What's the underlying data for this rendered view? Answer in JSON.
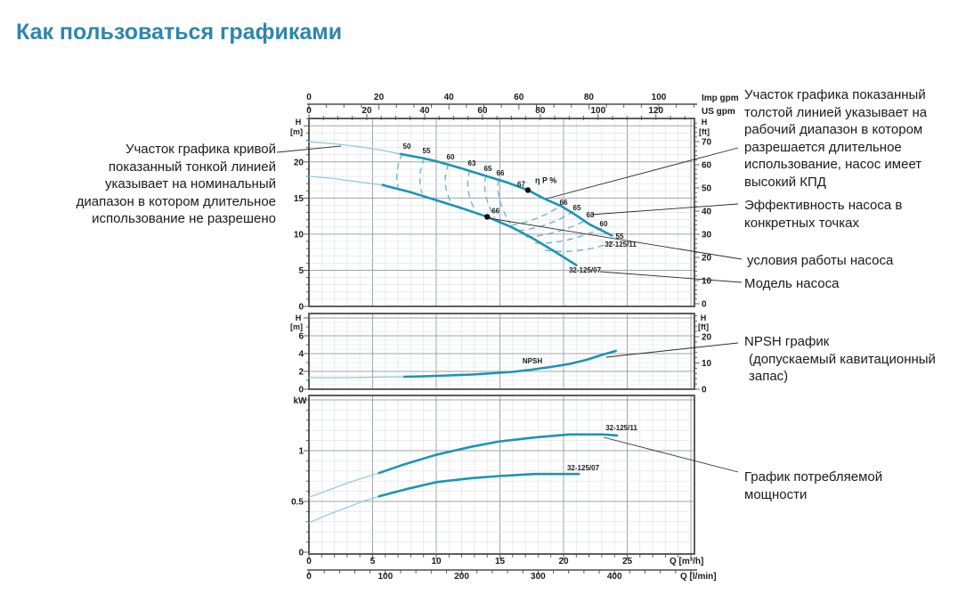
{
  "page": {
    "title": "Как пользоваться графиками"
  },
  "annotations": {
    "left_nominal": "Участок графика кривой показанный тонкой линией указывает на номинальный диапазон в котором длительное использование не разрешено",
    "right_working": "Участок графика показанный толстой линией указывает на рабочий диапазон в котором разрешается длительное использование, насос имеет высокий КПД",
    "efficiency_points": "Эффективность насоса в конкретных точках",
    "operating_point": "условия работы насоса",
    "pump_model": "Модель насоса",
    "npsh_line1": "NPSH график",
    "npsh_line2": "(допускаемый кавитационный запас)",
    "power": "График потребляемой мощности"
  },
  "colors": {
    "accent_title": "#2e86ad",
    "curve_thick": "#1b95b5",
    "curve_thin": "#8fc8dc",
    "curve_dashed": "#66b2cc",
    "callout": "#2b2b2b",
    "grid_minor": "#dcdfe1",
    "grid_major": "#9fa4a8",
    "border": "#4d4d4d",
    "text": "#1a1a1a"
  },
  "chart_data": [
    {
      "type": "line",
      "name": "head-flow-chart",
      "x_top_axes": [
        {
          "unit": "Imp gpm",
          "ticks": [
            0,
            20,
            40,
            60,
            80,
            100
          ]
        },
        {
          "unit": "US gpm",
          "ticks": [
            0,
            20,
            40,
            60,
            80,
            100,
            120
          ]
        }
      ],
      "ylabel_left": [
        "H",
        "[m]"
      ],
      "yticks_left": [
        0,
        5,
        10,
        15,
        20
      ],
      "ylabel_right": [
        "H",
        "[ft]"
      ],
      "yticks_right": [
        0,
        10,
        20,
        30,
        40,
        50,
        60,
        70
      ],
      "xlim_m3h": [
        0,
        30.3
      ],
      "ylim_m": [
        0,
        26
      ],
      "series": [
        {
          "name": "32-125/11",
          "nominal_until_q": 7.2,
          "points": [
            [
              0,
              22.8
            ],
            [
              2,
              22.5
            ],
            [
              4,
              22.1
            ],
            [
              5.5,
              21.7
            ],
            [
              7.2,
              21.1
            ],
            [
              9,
              20.5
            ],
            [
              10,
              20.1
            ],
            [
              12,
              19.1
            ],
            [
              14,
              18.0
            ],
            [
              15.5,
              17.2
            ],
            [
              17.2,
              16.1
            ],
            [
              18.5,
              14.9
            ],
            [
              19.8,
              13.9
            ],
            [
              21,
              12.6
            ],
            [
              22,
              11.4
            ],
            [
              23,
              10.5
            ],
            [
              23.8,
              9.8
            ]
          ]
        },
        {
          "name": "32-125/07",
          "nominal_until_q": 5.8,
          "points": [
            [
              0,
              18.0
            ],
            [
              2,
              17.7
            ],
            [
              4,
              17.2
            ],
            [
              5.8,
              16.8
            ],
            [
              8,
              15.8
            ],
            [
              10,
              14.7
            ],
            [
              12,
              13.6
            ],
            [
              14,
              12.4
            ],
            [
              16,
              10.9
            ],
            [
              17.7,
              9.3
            ],
            [
              19.3,
              7.6
            ],
            [
              21,
              5.7
            ]
          ]
        }
      ],
      "efficiency_curve_labels": [
        50,
        55,
        60,
        63,
        65,
        66
      ],
      "efficiency_cascade_labels": [
        66,
        65,
        63,
        60,
        55
      ],
      "best_efficiency_point": {
        "label": "67",
        "eta_caption": "η P %",
        "q_m3h": 17.2,
        "h_m": 16.1
      },
      "operating_point": {
        "label": "66",
        "q_m3h": 14,
        "h_m": 12.4
      }
    },
    {
      "type": "line",
      "name": "npsh-chart",
      "ylabel_left": [
        "H",
        "[m]"
      ],
      "yticks_left": [
        0,
        2,
        4,
        6
      ],
      "ylabel_right": [
        "H",
        "[ft]"
      ],
      "yticks_right": [
        0,
        10,
        20
      ],
      "series": [
        {
          "name": "NPSH",
          "nominal_until_q": 7.5,
          "points": [
            [
              0,
              1.3
            ],
            [
              3,
              1.3
            ],
            [
              5,
              1.35
            ],
            [
              7.5,
              1.4
            ],
            [
              9,
              1.45
            ],
            [
              11,
              1.55
            ],
            [
              12.8,
              1.65
            ],
            [
              14.5,
              1.8
            ],
            [
              16,
              1.95
            ],
            [
              17.5,
              2.2
            ],
            [
              19,
              2.5
            ],
            [
              20.5,
              2.85
            ],
            [
              21.8,
              3.3
            ],
            [
              23,
              3.85
            ],
            [
              24.1,
              4.3
            ]
          ]
        }
      ]
    },
    {
      "type": "line",
      "name": "power-chart",
      "ylabel_left": "kW",
      "yticks_left": [
        "0",
        "0.5",
        "1"
      ],
      "x_bottom_axes": [
        {
          "unit": "Q [m³/h]",
          "ticks": [
            0,
            5,
            10,
            15,
            20,
            25
          ]
        },
        {
          "unit": "Q [l/min]",
          "ticks": [
            0,
            100,
            200,
            300,
            400
          ]
        }
      ],
      "series": [
        {
          "name": "32-125/11",
          "nominal_until_q": 5.5,
          "points": [
            [
              0,
              0.54
            ],
            [
              1.5,
              0.61
            ],
            [
              3,
              0.68
            ],
            [
              4.2,
              0.73
            ],
            [
              5.5,
              0.78
            ],
            [
              7.6,
              0.87
            ],
            [
              10,
              0.96
            ],
            [
              12.8,
              1.04
            ],
            [
              14.9,
              1.09
            ],
            [
              17.7,
              1.13
            ],
            [
              20.5,
              1.16
            ],
            [
              23.1,
              1.16
            ],
            [
              24.2,
              1.15
            ]
          ]
        },
        {
          "name": "32-125/07",
          "nominal_until_q": 5.5,
          "points": [
            [
              0,
              0.29
            ],
            [
              1.5,
              0.37
            ],
            [
              3,
              0.44
            ],
            [
              4.2,
              0.5
            ],
            [
              5.5,
              0.55
            ],
            [
              7.6,
              0.62
            ],
            [
              10,
              0.69
            ],
            [
              12.8,
              0.73
            ],
            [
              14.9,
              0.75
            ],
            [
              17.7,
              0.77
            ],
            [
              19.5,
              0.77
            ],
            [
              21.2,
              0.77
            ]
          ]
        }
      ]
    }
  ]
}
